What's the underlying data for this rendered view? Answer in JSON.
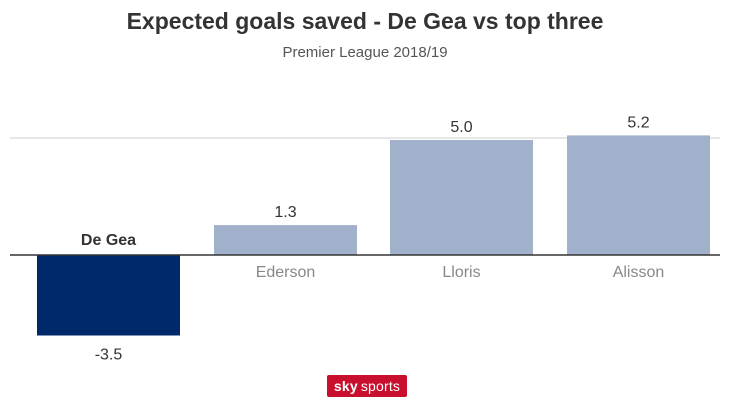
{
  "chart_data": {
    "type": "bar",
    "title": "Expected goals saved - De Gea vs top three",
    "subtitle": "Premier League 2018/19",
    "categories": [
      "De Gea",
      "Ederson",
      "Lloris",
      "Alisson"
    ],
    "values": [
      -3.5,
      1.3,
      5.0,
      5.2
    ],
    "value_labels": [
      "-3.5",
      "1.3",
      "5.0",
      "5.2"
    ],
    "xlabel": "",
    "ylabel": "",
    "ylim": [
      -3.5,
      5.2
    ],
    "grid": false,
    "colors": {
      "highlight": "#00296b",
      "default": "#a2b1cb",
      "highlight_label": "#333333",
      "default_label": "#888888",
      "zero_line": "#333333",
      "top_line": "#cccccc"
    },
    "highlight_category": "De Gea"
  },
  "branding": {
    "logo_part1": "sky",
    "logo_part2": "sports",
    "logo_color": "#c8102e"
  }
}
